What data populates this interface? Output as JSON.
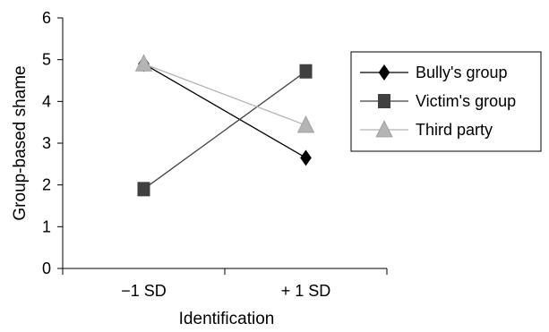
{
  "chart_data": {
    "type": "line",
    "title": "",
    "xlabel": "Identification",
    "ylabel": "Group-based shame",
    "categories": [
      "−1 SD",
      "+ 1 SD"
    ],
    "ylim": [
      0,
      6
    ],
    "yticks": [
      0,
      1,
      2,
      3,
      4,
      5,
      6
    ],
    "grid": false,
    "legend_position": "right",
    "series": [
      {
        "name": "Bully's group",
        "values": [
          4.9,
          2.65
        ],
        "color": "#000000",
        "marker": "diamond"
      },
      {
        "name": "Victim's group",
        "values": [
          1.9,
          4.72
        ],
        "color": "#404040",
        "marker": "square"
      },
      {
        "name": "Third party",
        "values": [
          4.9,
          3.43
        ],
        "color": "#b4b4b4",
        "marker": "triangle"
      }
    ]
  }
}
